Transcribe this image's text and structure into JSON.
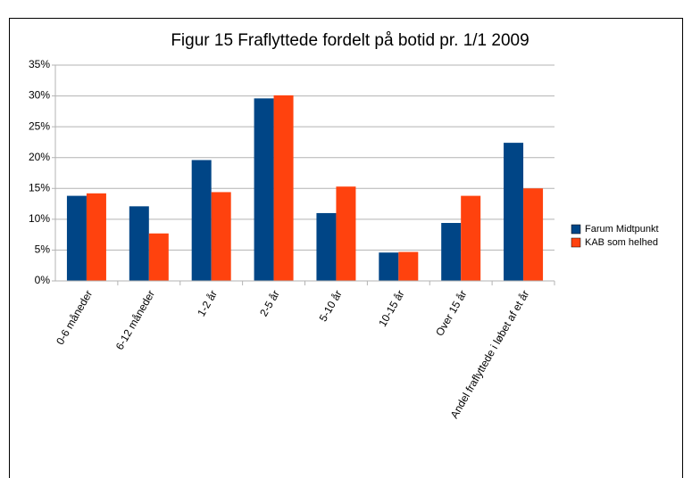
{
  "chart_data": {
    "type": "bar",
    "title": "Figur 15 Fraflyttede fordelt på botid pr. 1/1 2009",
    "categories": [
      "0-6 måneder",
      "6-12 måneder",
      "1-2 år",
      "2-5 år",
      "5-10 år",
      "10-15 år",
      "Over 15 år",
      "Andel fraflyttede i løbet af et år"
    ],
    "series": [
      {
        "name": "Farum Midtpunkt",
        "color": "#004586",
        "values": [
          13.8,
          12.1,
          19.6,
          29.6,
          11.0,
          4.6,
          9.4,
          22.4
        ]
      },
      {
        "name": "KAB som helhed",
        "color": "#ff420e",
        "values": [
          14.2,
          7.7,
          14.4,
          30.1,
          15.3,
          4.7,
          13.8,
          15.0
        ]
      }
    ],
    "ylim": [
      0,
      35
    ],
    "yticks": [
      {
        "value": 0,
        "label": "0%"
      },
      {
        "value": 5,
        "label": "5%"
      },
      {
        "value": 10,
        "label": "10%"
      },
      {
        "value": 15,
        "label": "15%"
      },
      {
        "value": 20,
        "label": "20%"
      },
      {
        "value": 25,
        "label": "25%"
      },
      {
        "value": 30,
        "label": "30%"
      },
      {
        "value": 35,
        "label": "35%"
      }
    ],
    "grid": true,
    "legend": "right"
  }
}
